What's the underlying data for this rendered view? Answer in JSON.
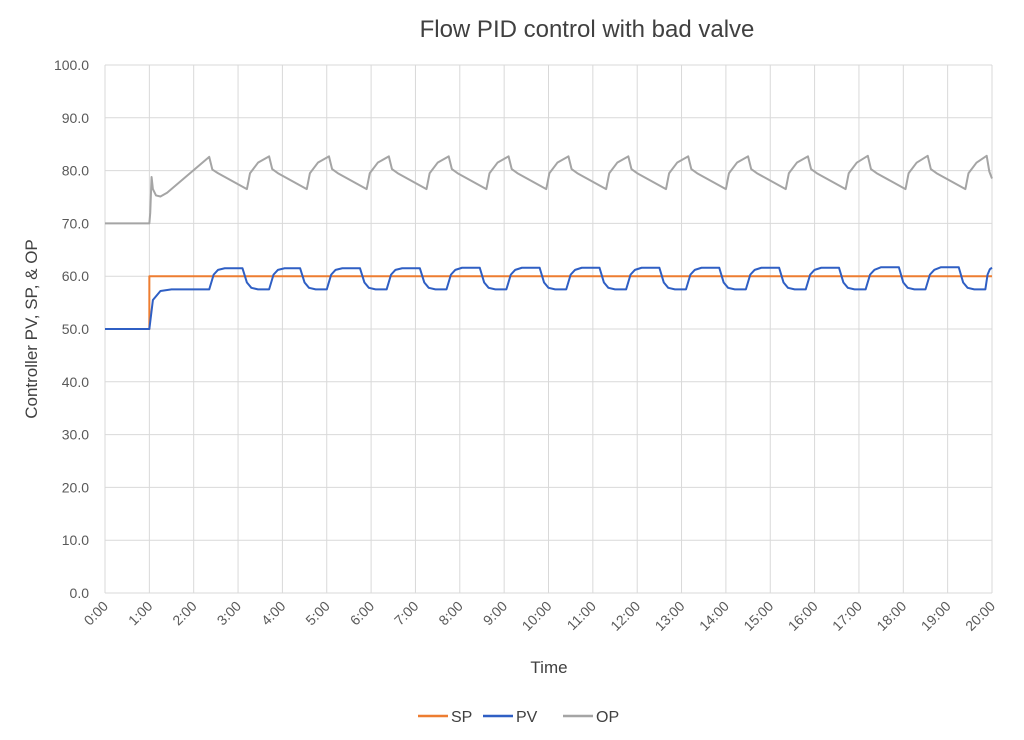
{
  "chart_data": {
    "type": "line",
    "title": "Flow PID control with bad valve",
    "xlabel": "Time",
    "ylabel": "Controller PV, SP, & OP",
    "xlim": [
      0,
      20
    ],
    "ylim": [
      0,
      100
    ],
    "x_tick_labels": [
      "0:00",
      "1:00",
      "2:00",
      "3:00",
      "4:00",
      "5:00",
      "6:00",
      "7:00",
      "8:00",
      "9:00",
      "10:00",
      "11:00",
      "12:00",
      "13:00",
      "14:00",
      "15:00",
      "16:00",
      "17:00",
      "18:00",
      "19:00",
      "20:00"
    ],
    "y_tick_labels": [
      "0.0",
      "10.0",
      "20.0",
      "30.0",
      "40.0",
      "50.0",
      "60.0",
      "70.0",
      "80.0",
      "90.0",
      "100.0"
    ],
    "grid": "vertical and horizontal",
    "legend_position": "bottom",
    "series": [
      {
        "name": "SP",
        "color": "#ED7D31",
        "points": [
          [
            0,
            50
          ],
          [
            1,
            50
          ],
          [
            1,
            60
          ],
          [
            20,
            60
          ]
        ]
      },
      {
        "name": "PV",
        "color": "#2F5FC4",
        "points": [
          [
            0,
            50
          ],
          [
            1,
            50
          ],
          [
            1.08,
            55.5
          ],
          [
            1.25,
            57.2
          ],
          [
            1.5,
            57.5
          ],
          [
            2.35,
            57.5
          ],
          [
            2.45,
            60.3
          ],
          [
            2.55,
            61.2
          ],
          [
            2.7,
            61.5
          ],
          [
            3.1,
            61.5
          ],
          [
            3.2,
            58.8
          ],
          [
            3.3,
            57.8
          ],
          [
            3.45,
            57.5
          ],
          [
            3.7,
            57.5
          ],
          [
            3.8,
            60.3
          ],
          [
            3.9,
            61.2
          ],
          [
            4.05,
            61.5
          ],
          [
            4.4,
            61.5
          ],
          [
            4.5,
            58.8
          ],
          [
            4.6,
            57.8
          ],
          [
            4.75,
            57.5
          ],
          [
            5.0,
            57.5
          ],
          [
            5.1,
            60.3
          ],
          [
            5.2,
            61.2
          ],
          [
            5.35,
            61.5
          ],
          [
            5.75,
            61.5
          ],
          [
            5.85,
            58.8
          ],
          [
            5.95,
            57.8
          ],
          [
            6.1,
            57.5
          ],
          [
            6.35,
            57.5
          ],
          [
            6.45,
            60.3
          ],
          [
            6.55,
            61.2
          ],
          [
            6.7,
            61.5
          ],
          [
            7.1,
            61.5
          ],
          [
            7.2,
            58.8
          ],
          [
            7.3,
            57.8
          ],
          [
            7.45,
            57.5
          ],
          [
            7.7,
            57.5
          ],
          [
            7.8,
            60.3
          ],
          [
            7.9,
            61.2
          ],
          [
            8.05,
            61.6
          ],
          [
            8.45,
            61.6
          ],
          [
            8.55,
            58.8
          ],
          [
            8.65,
            57.8
          ],
          [
            8.8,
            57.5
          ],
          [
            9.05,
            57.5
          ],
          [
            9.15,
            60.3
          ],
          [
            9.25,
            61.2
          ],
          [
            9.4,
            61.6
          ],
          [
            9.8,
            61.6
          ],
          [
            9.9,
            58.8
          ],
          [
            10.0,
            57.8
          ],
          [
            10.15,
            57.5
          ],
          [
            10.4,
            57.5
          ],
          [
            10.5,
            60.3
          ],
          [
            10.6,
            61.2
          ],
          [
            10.75,
            61.6
          ],
          [
            11.15,
            61.6
          ],
          [
            11.25,
            58.8
          ],
          [
            11.35,
            57.8
          ],
          [
            11.5,
            57.5
          ],
          [
            11.75,
            57.5
          ],
          [
            11.85,
            60.3
          ],
          [
            11.95,
            61.2
          ],
          [
            12.1,
            61.6
          ],
          [
            12.5,
            61.6
          ],
          [
            12.6,
            58.8
          ],
          [
            12.7,
            57.8
          ],
          [
            12.85,
            57.5
          ],
          [
            13.1,
            57.5
          ],
          [
            13.2,
            60.3
          ],
          [
            13.3,
            61.2
          ],
          [
            13.45,
            61.6
          ],
          [
            13.85,
            61.6
          ],
          [
            13.95,
            58.8
          ],
          [
            14.05,
            57.8
          ],
          [
            14.2,
            57.5
          ],
          [
            14.45,
            57.5
          ],
          [
            14.55,
            60.3
          ],
          [
            14.65,
            61.2
          ],
          [
            14.8,
            61.6
          ],
          [
            15.2,
            61.6
          ],
          [
            15.3,
            58.8
          ],
          [
            15.4,
            57.8
          ],
          [
            15.55,
            57.5
          ],
          [
            15.8,
            57.5
          ],
          [
            15.9,
            60.3
          ],
          [
            16.0,
            61.2
          ],
          [
            16.15,
            61.6
          ],
          [
            16.55,
            61.6
          ],
          [
            16.65,
            58.8
          ],
          [
            16.75,
            57.8
          ],
          [
            16.9,
            57.5
          ],
          [
            17.15,
            57.5
          ],
          [
            17.25,
            60.3
          ],
          [
            17.35,
            61.2
          ],
          [
            17.5,
            61.7
          ],
          [
            17.9,
            61.7
          ],
          [
            18.0,
            58.8
          ],
          [
            18.1,
            57.8
          ],
          [
            18.25,
            57.5
          ],
          [
            18.5,
            57.5
          ],
          [
            18.6,
            60.3
          ],
          [
            18.7,
            61.2
          ],
          [
            18.85,
            61.7
          ],
          [
            19.25,
            61.7
          ],
          [
            19.35,
            58.8
          ],
          [
            19.45,
            57.8
          ],
          [
            19.6,
            57.5
          ],
          [
            19.85,
            57.5
          ],
          [
            19.9,
            60.3
          ],
          [
            19.95,
            61.3
          ],
          [
            20,
            61.6
          ]
        ]
      },
      {
        "name": "OP",
        "color": "#A5A5A5",
        "points": [
          [
            0,
            70
          ],
          [
            1,
            70
          ],
          [
            1.02,
            72
          ],
          [
            1.05,
            78.8
          ],
          [
            1.08,
            76.5
          ],
          [
            1.15,
            75.3
          ],
          [
            1.25,
            75.1
          ],
          [
            1.4,
            75.8
          ],
          [
            2.35,
            82.6
          ],
          [
            2.42,
            80.2
          ],
          [
            2.55,
            79.5
          ],
          [
            3.2,
            76.5
          ],
          [
            3.27,
            79.5
          ],
          [
            3.45,
            81.5
          ],
          [
            3.7,
            82.7
          ],
          [
            3.77,
            80.3
          ],
          [
            3.9,
            79.5
          ],
          [
            4.55,
            76.5
          ],
          [
            4.62,
            79.5
          ],
          [
            4.8,
            81.5
          ],
          [
            5.05,
            82.7
          ],
          [
            5.12,
            80.3
          ],
          [
            5.25,
            79.5
          ],
          [
            5.9,
            76.5
          ],
          [
            5.97,
            79.5
          ],
          [
            6.15,
            81.5
          ],
          [
            6.4,
            82.7
          ],
          [
            6.47,
            80.3
          ],
          [
            6.6,
            79.5
          ],
          [
            7.25,
            76.5
          ],
          [
            7.32,
            79.5
          ],
          [
            7.5,
            81.5
          ],
          [
            7.75,
            82.7
          ],
          [
            7.82,
            80.3
          ],
          [
            7.95,
            79.5
          ],
          [
            8.6,
            76.5
          ],
          [
            8.67,
            79.5
          ],
          [
            8.85,
            81.5
          ],
          [
            9.1,
            82.7
          ],
          [
            9.17,
            80.3
          ],
          [
            9.3,
            79.5
          ],
          [
            9.95,
            76.5
          ],
          [
            10.02,
            79.5
          ],
          [
            10.2,
            81.5
          ],
          [
            10.45,
            82.7
          ],
          [
            10.52,
            80.3
          ],
          [
            10.65,
            79.5
          ],
          [
            11.3,
            76.5
          ],
          [
            11.37,
            79.5
          ],
          [
            11.55,
            81.5
          ],
          [
            11.8,
            82.7
          ],
          [
            11.87,
            80.3
          ],
          [
            12.0,
            79.5
          ],
          [
            12.65,
            76.5
          ],
          [
            12.72,
            79.5
          ],
          [
            12.9,
            81.5
          ],
          [
            13.15,
            82.7
          ],
          [
            13.22,
            80.3
          ],
          [
            13.35,
            79.5
          ],
          [
            14.0,
            76.5
          ],
          [
            14.07,
            79.5
          ],
          [
            14.25,
            81.5
          ],
          [
            14.5,
            82.7
          ],
          [
            14.57,
            80.3
          ],
          [
            14.7,
            79.5
          ],
          [
            15.35,
            76.5
          ],
          [
            15.42,
            79.5
          ],
          [
            15.6,
            81.5
          ],
          [
            15.85,
            82.7
          ],
          [
            15.92,
            80.3
          ],
          [
            16.05,
            79.5
          ],
          [
            16.7,
            76.5
          ],
          [
            16.77,
            79.5
          ],
          [
            16.95,
            81.5
          ],
          [
            17.2,
            82.8
          ],
          [
            17.27,
            80.3
          ],
          [
            17.4,
            79.5
          ],
          [
            18.05,
            76.5
          ],
          [
            18.12,
            79.5
          ],
          [
            18.3,
            81.5
          ],
          [
            18.55,
            82.8
          ],
          [
            18.62,
            80.3
          ],
          [
            18.75,
            79.5
          ],
          [
            19.4,
            76.5
          ],
          [
            19.47,
            79.5
          ],
          [
            19.65,
            81.5
          ],
          [
            19.88,
            82.8
          ],
          [
            19.94,
            79.8
          ],
          [
            20,
            78.5
          ]
        ]
      }
    ]
  }
}
